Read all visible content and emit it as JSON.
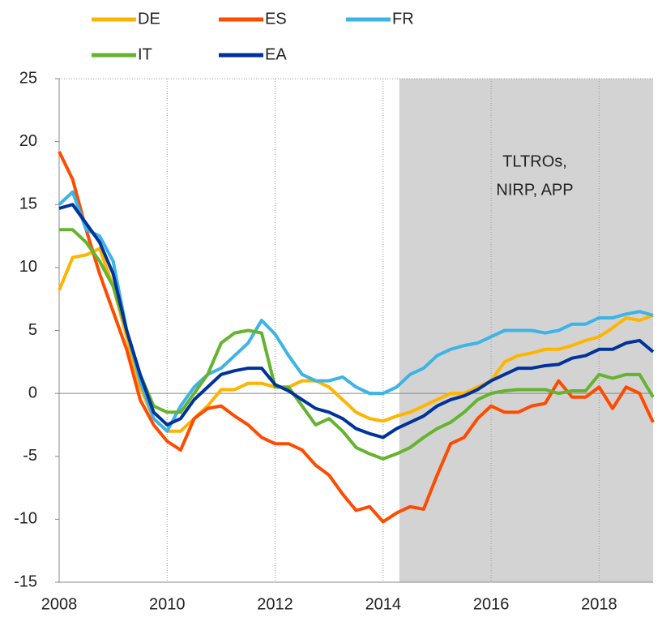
{
  "chart_data": {
    "type": "line",
    "x": [
      2008,
      2008.25,
      2008.5,
      2008.75,
      2009,
      2009.25,
      2009.5,
      2009.75,
      2010,
      2010.25,
      2010.5,
      2010.75,
      2011,
      2011.25,
      2011.5,
      2011.75,
      2012,
      2012.25,
      2012.5,
      2012.75,
      2013,
      2013.25,
      2013.5,
      2013.75,
      2014,
      2014.25,
      2014.5,
      2014.75,
      2015,
      2015.25,
      2015.5,
      2015.75,
      2016,
      2016.25,
      2016.5,
      2016.75,
      2017,
      2017.25,
      2017.5,
      2017.75,
      2018,
      2018.25,
      2018.5,
      2018.75,
      2019
    ],
    "series": [
      {
        "name": "DE",
        "color": "#ffb400",
        "values": [
          8.2,
          10.8,
          11,
          11.5,
          8.5,
          4.5,
          0.5,
          -2,
          -3,
          -3,
          -2,
          -1,
          0.3,
          0.3,
          0.8,
          0.8,
          0.5,
          0.5,
          1,
          1,
          0.5,
          -0.5,
          -1.5,
          -2,
          -2.2,
          -1.8,
          -1.5,
          -1,
          -0.5,
          0,
          0,
          0.5,
          1,
          2.5,
          3,
          3.2,
          3.5,
          3.5,
          3.8,
          4.2,
          4.5,
          5.2,
          6,
          5.8,
          6.2
        ]
      },
      {
        "name": "ES",
        "color": "#ff4b00",
        "values": [
          19.2,
          17,
          13,
          9.5,
          6.5,
          3.5,
          -0.5,
          -2.5,
          -3.8,
          -4.5,
          -2,
          -1.2,
          -1,
          -1.8,
          -2.5,
          -3.5,
          -4,
          -4,
          -4.5,
          -5.7,
          -6.5,
          -8,
          -9.3,
          -9,
          -10.2,
          -9.5,
          -9,
          -9.2,
          -6.5,
          -4,
          -3.5,
          -2,
          -1,
          -1.5,
          -1.5,
          -1,
          -0.8,
          1,
          -0.3,
          -0.3,
          0.5,
          -1.2,
          0.5,
          0,
          -2.3
        ]
      },
      {
        "name": "FR",
        "color": "#3cb4e6",
        "values": [
          15,
          16,
          13,
          12.5,
          10.5,
          5,
          1,
          -2,
          -3,
          -1,
          0.5,
          1.5,
          2,
          3,
          4,
          5.8,
          4.7,
          3,
          1.5,
          1,
          1,
          1.3,
          0.5,
          0,
          0,
          0.5,
          1.5,
          2,
          3,
          3.5,
          3.8,
          4,
          4.5,
          5,
          5,
          5,
          4.8,
          5,
          5.5,
          5.5,
          6,
          6,
          6.3,
          6.5,
          6.2
        ]
      },
      {
        "name": "IT",
        "color": "#65b32e",
        "values": [
          13,
          13,
          12,
          10.5,
          8.5,
          5,
          1.5,
          -1,
          -1.5,
          -1.5,
          0,
          1.5,
          4,
          4.8,
          5,
          4.8,
          0.5,
          0.5,
          -1,
          -2.5,
          -2,
          -3,
          -4.3,
          -4.8,
          -5.2,
          -4.8,
          -4.3,
          -3.5,
          -2.8,
          -2.3,
          -1.5,
          -0.5,
          0,
          0.2,
          0.3,
          0.3,
          0.3,
          0,
          0.2,
          0.2,
          1.5,
          1.2,
          1.5,
          1.5,
          -0.3
        ]
      },
      {
        "name": "EA",
        "color": "#003299",
        "values": [
          14.7,
          15,
          13.5,
          12,
          9.5,
          5,
          1.5,
          -1.5,
          -2.5,
          -2,
          -0.5,
          0.5,
          1.5,
          1.8,
          2,
          2,
          0.7,
          0.2,
          -0.5,
          -1.2,
          -1.5,
          -2,
          -2.8,
          -3.2,
          -3.5,
          -2.8,
          -2.3,
          -1.8,
          -1,
          -0.5,
          -0.2,
          0.3,
          1,
          1.5,
          2,
          2,
          2.2,
          2.3,
          2.8,
          3,
          3.5,
          3.5,
          4,
          4.2,
          3.3
        ]
      }
    ],
    "xlim": [
      2008,
      2019
    ],
    "xticks": [
      2008,
      2010,
      2012,
      2014,
      2016,
      2018
    ],
    "ylim": [
      -15,
      25
    ],
    "yticks": [
      -15,
      -10,
      -5,
      0,
      5,
      10,
      15,
      20,
      25
    ],
    "shaded": {
      "x": [
        2014.3,
        2019
      ],
      "color": "#d3d3d3",
      "label": [
        "TLTROs,",
        "NIRP, APP"
      ]
    },
    "grid": true
  }
}
